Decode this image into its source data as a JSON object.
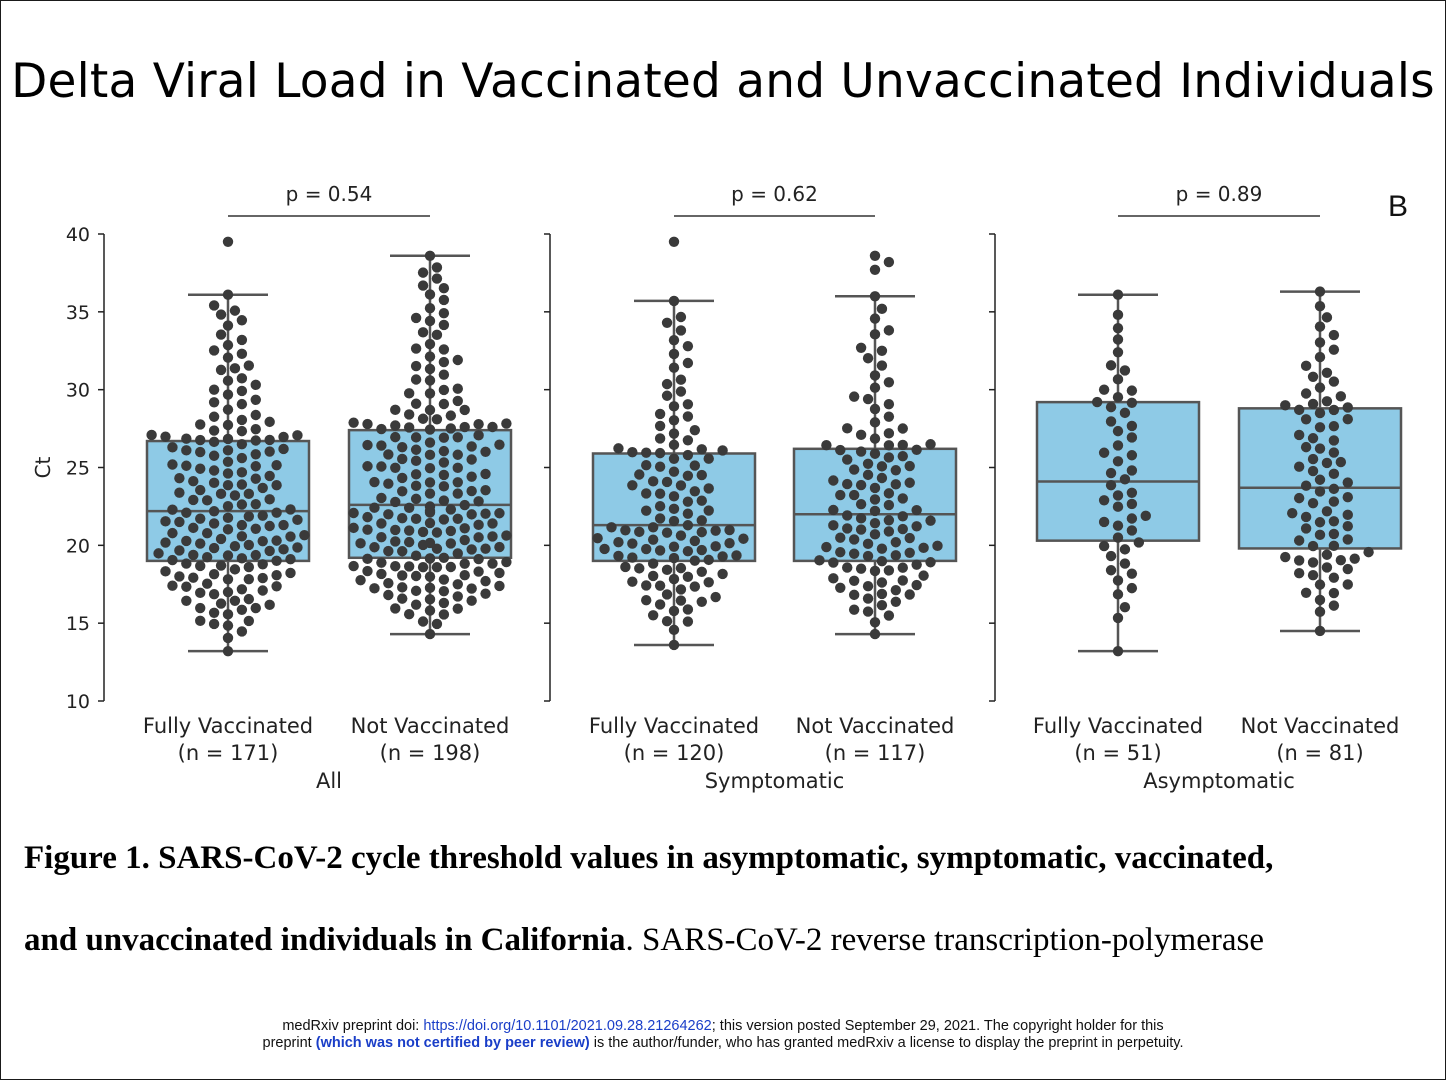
{
  "slide": {
    "title": "Delta Viral Load in Vaccinated and Unvaccinated Individuals"
  },
  "caption": {
    "line1": "Figure 1. SARS-CoV-2 cycle threshold values in asymptomatic, symptomatic, vaccinated,",
    "line2_bold": "and unvaccinated individuals in California",
    "line2_rest": ". SARS-CoV-2 reverse transcription-polymerase"
  },
  "footer": {
    "line1_pre": "medRxiv preprint doi: ",
    "doi_link": "https://doi.org/10.1101/2021.09.28.21264262",
    "line1_post": "; this version posted September 29, 2021. The copyright holder for this",
    "line2_pre": "preprint  ",
    "line2_bold": "(which was not certified by peer review)",
    "line2_post": " is the author/funder, who has granted medRxiv a license to display the preprint in perpetuity."
  },
  "chart_data": {
    "type": "box-swarm",
    "panel_letter": "B",
    "ylabel": "Ct",
    "ylim": [
      10,
      40
    ],
    "yticks": [
      10,
      15,
      20,
      25,
      30,
      35,
      40
    ],
    "box_color": "#8ecae6",
    "point_color": "#3a3a3a",
    "panels": [
      {
        "group": "All",
        "p_value": "p = 0.54",
        "boxes": [
          {
            "label": "Fully Vaccinated",
            "n": "(n = 171)",
            "whisker_low": 13.2,
            "q1": 19.0,
            "median": 22.2,
            "q3": 26.7,
            "whisker_high": 36.1,
            "outliers": [
              39.5
            ],
            "count": 171
          },
          {
            "label": "Not Vaccinated",
            "n": "(n = 198)",
            "whisker_low": 14.3,
            "q1": 19.2,
            "median": 22.6,
            "q3": 27.4,
            "whisker_high": 38.6,
            "outliers": [],
            "count": 198
          }
        ]
      },
      {
        "group": "Symptomatic",
        "p_value": "p = 0.62",
        "boxes": [
          {
            "label": "Fully Vaccinated",
            "n": "(n = 120)",
            "whisker_low": 13.6,
            "q1": 19.0,
            "median": 21.3,
            "q3": 25.9,
            "whisker_high": 35.7,
            "outliers": [
              39.5
            ],
            "count": 120
          },
          {
            "label": "Not Vaccinated",
            "n": "(n = 117)",
            "whisker_low": 14.3,
            "q1": 19.0,
            "median": 22.0,
            "q3": 26.2,
            "whisker_high": 36.0,
            "outliers": [
              37.7,
              38.2,
              38.6
            ],
            "count": 117
          }
        ]
      },
      {
        "group": "Asymptomatic",
        "p_value": "p = 0.89",
        "boxes": [
          {
            "label": "Fully Vaccinated",
            "n": "(n = 51)",
            "whisker_low": 13.2,
            "q1": 20.3,
            "median": 24.1,
            "q3": 29.2,
            "whisker_high": 36.1,
            "outliers": [],
            "count": 51
          },
          {
            "label": "Not Vaccinated",
            "n": "(n = 81)",
            "whisker_low": 14.5,
            "q1": 19.8,
            "median": 23.7,
            "q3": 28.8,
            "whisker_high": 36.3,
            "outliers": [],
            "count": 81
          }
        ]
      }
    ]
  }
}
